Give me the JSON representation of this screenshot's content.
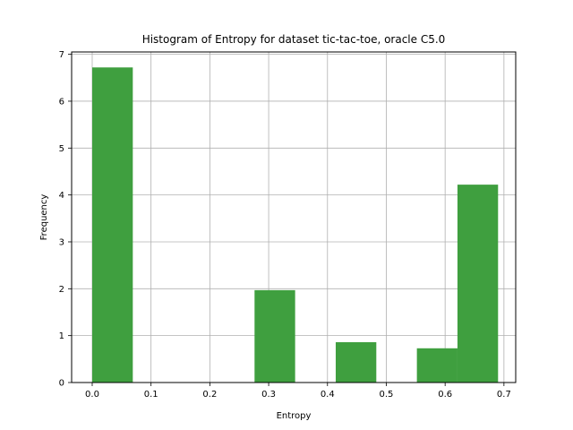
{
  "chart_data": {
    "type": "bar",
    "title": "Histogram of Entropy for dataset tic-tac-toe, oracle C5.0",
    "xlabel": "Entropy",
    "ylabel": "Frequency",
    "xlim": [
      -0.035,
      0.72
    ],
    "ylim": [
      0,
      7.05
    ],
    "grid": true,
    "bar_color": "#3f9f3f",
    "bins": [
      {
        "x0": 0.0,
        "x1": 0.069,
        "value": 6.72
      },
      {
        "x0": 0.069,
        "x1": 0.138,
        "value": 0
      },
      {
        "x0": 0.138,
        "x1": 0.207,
        "value": 0
      },
      {
        "x0": 0.207,
        "x1": 0.276,
        "value": 0
      },
      {
        "x0": 0.276,
        "x1": 0.345,
        "value": 1.97
      },
      {
        "x0": 0.345,
        "x1": 0.414,
        "value": 0
      },
      {
        "x0": 0.414,
        "x1": 0.483,
        "value": 0.86
      },
      {
        "x0": 0.483,
        "x1": 0.552,
        "value": 0
      },
      {
        "x0": 0.552,
        "x1": 0.621,
        "value": 0.73
      },
      {
        "x0": 0.621,
        "x1": 0.69,
        "value": 4.22
      }
    ],
    "xticks": [
      0.0,
      0.1,
      0.2,
      0.3,
      0.4,
      0.5,
      0.6,
      0.7
    ],
    "xtick_labels": [
      "0.0",
      "0.1",
      "0.2",
      "0.3",
      "0.4",
      "0.5",
      "0.6",
      "0.7"
    ],
    "yticks": [
      0,
      1,
      2,
      3,
      4,
      5,
      6,
      7
    ],
    "ytick_labels": [
      "0",
      "1",
      "2",
      "3",
      "4",
      "5",
      "6",
      "7"
    ]
  }
}
